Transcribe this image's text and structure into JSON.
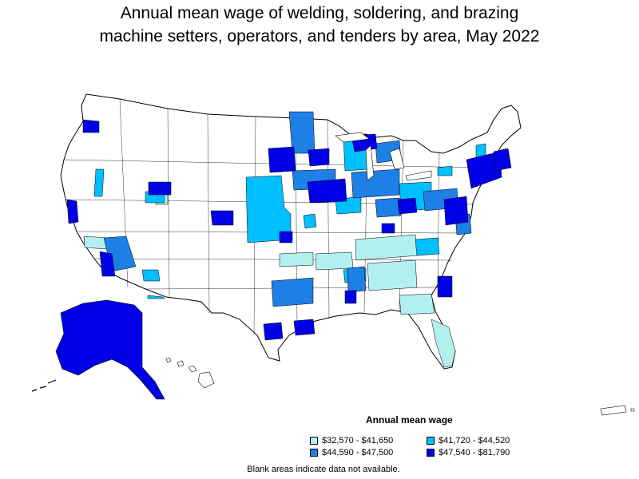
{
  "title": {
    "line1": "Annual mean wage of welding, soldering, and brazing",
    "line2": "machine setters, operators, and tenders by area, May 2022"
  },
  "legend": {
    "title": "Annual mean wage",
    "items": [
      {
        "label": "$32,570 - $41,650",
        "color": "#b2f0f0"
      },
      {
        "label": "$41,720 - $44,520",
        "color": "#00bfff"
      },
      {
        "label": "$44,590 - $47,500",
        "color": "#1e7fe6"
      },
      {
        "label": "$47,540 - $81,790",
        "color": "#0000e6"
      }
    ]
  },
  "footnote": "Blank areas indicate data not available.",
  "colors": {
    "no_data": "#ffffff",
    "border": "#000000"
  }
}
